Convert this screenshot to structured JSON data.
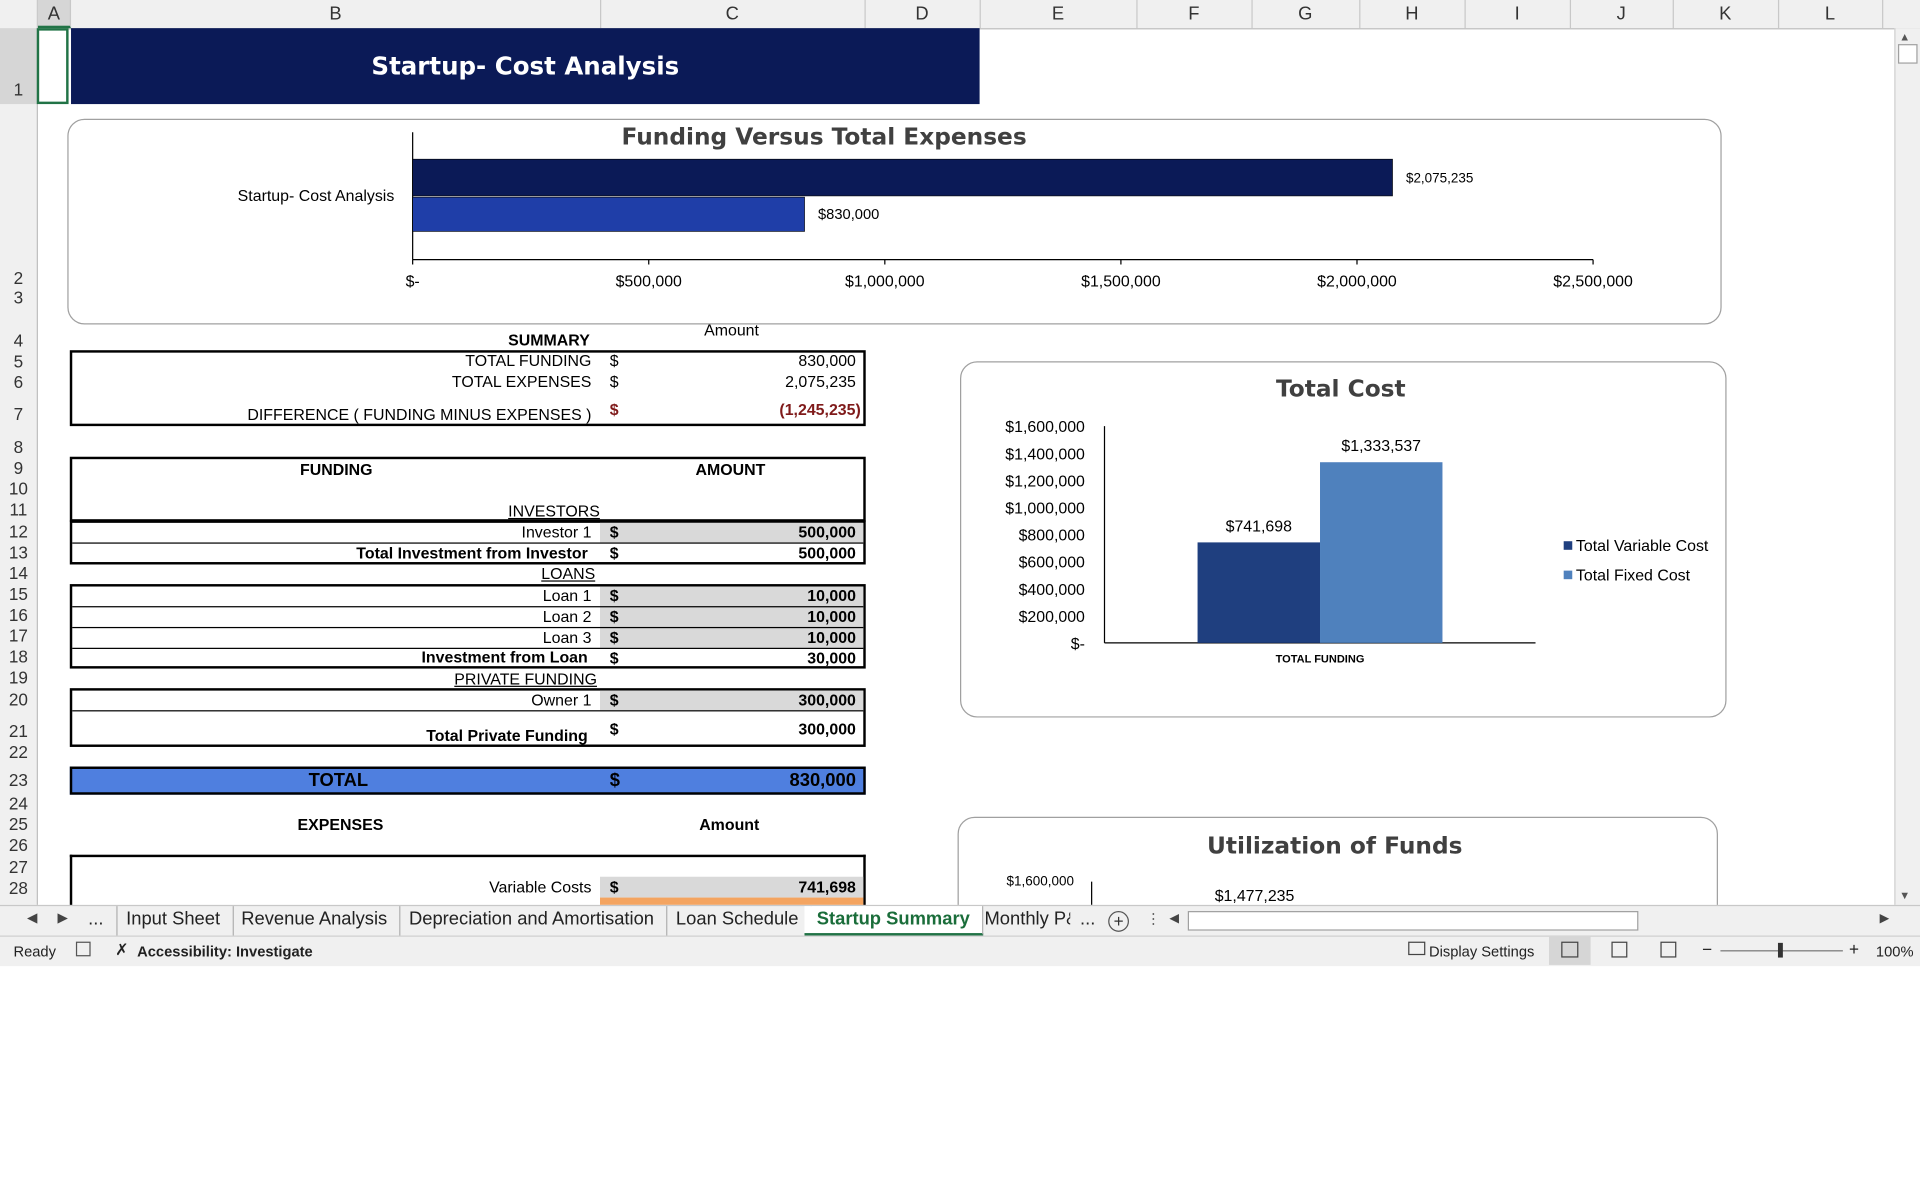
{
  "columns": [
    "A",
    "B",
    "C",
    "D",
    "E",
    "F",
    "G",
    "H",
    "I",
    "J",
    "K",
    "L"
  ],
  "rows": [
    "1",
    "2",
    "3",
    "4",
    "5",
    "6",
    "7",
    "8",
    "9",
    "10",
    "11",
    "12",
    "13",
    "14",
    "15",
    "16",
    "17",
    "18",
    "19",
    "20",
    "21",
    "22",
    "23",
    "24",
    "25",
    "26",
    "27",
    "28"
  ],
  "banner_title": "Startup- Cost Analysis",
  "chart1": {
    "title": "Funding Versus Total Expenses",
    "category": "Startup- Cost Analysis",
    "x_ticks": [
      "$-",
      "$500,000",
      "$1,000,000",
      "$1,500,000",
      "$2,000,000",
      "$2,500,000"
    ],
    "xlabel": "Amount"
  },
  "chart2": {
    "title": "Total Cost",
    "y_ticks": [
      "$1,600,000",
      "$1,400,000",
      "$1,200,000",
      "$1,000,000",
      "$800,000",
      "$600,000",
      "$400,000",
      "$200,000",
      "$-"
    ],
    "category": "TOTAL FUNDING",
    "legend": [
      "Total Variable Cost",
      "Total Fixed Cost"
    ]
  },
  "chart3": {
    "title": "Utilization of Funds",
    "y_top": "$1,600,000",
    "data_label": "$1,477,235"
  },
  "chart_data": [
    {
      "type": "bar",
      "orientation": "horizontal",
      "title": "Funding Versus Total Expenses",
      "categories": [
        "Startup- Cost Analysis"
      ],
      "series": [
        {
          "values": [
            2075235
          ],
          "label": "$2,075,235",
          "color": "#0b1a57"
        },
        {
          "values": [
            830000
          ],
          "label": "$830,000",
          "color": "#1f3ea8"
        }
      ],
      "xlim": [
        0,
        2500000
      ],
      "grid": false
    },
    {
      "type": "bar",
      "title": "Total Cost",
      "categories": [
        "TOTAL FUNDING"
      ],
      "series": [
        {
          "name": "Total Variable Cost",
          "values": [
            741698
          ],
          "label": "$741,698",
          "color": "#1f3f7f"
        },
        {
          "name": "Total Fixed Cost",
          "values": [
            1333537
          ],
          "label": "$1,333,537",
          "color": "#4f81bd"
        }
      ],
      "ylim": [
        0,
        1600000
      ],
      "legend": "right",
      "grid": false
    }
  ],
  "summary": {
    "header": "SUMMARY",
    "amount_header": "Amount",
    "rows": [
      {
        "label": "TOTAL FUNDING",
        "cur": "$",
        "value": "830,000"
      },
      {
        "label": "TOTAL EXPENSES",
        "cur": "$",
        "value": "2,075,235"
      },
      {
        "label": "DIFFERENCE  ( FUNDING MINUS EXPENSES )",
        "cur": "$",
        "value": "(1,245,235)"
      }
    ]
  },
  "funding": {
    "header": "FUNDING",
    "amount_header": "AMOUNT",
    "investors_label": "INVESTORS",
    "investor1": {
      "label": "Investor 1",
      "cur": "$",
      "value": "500,000"
    },
    "investor_total": {
      "label": "Total Investment from Investor",
      "cur": "$",
      "value": "500,000"
    },
    "loans_label": "LOANS",
    "loans": [
      {
        "label": "Loan 1",
        "cur": "$",
        "value": "10,000"
      },
      {
        "label": "Loan 2",
        "cur": "$",
        "value": "10,000"
      },
      {
        "label": "Loan 3",
        "cur": "$",
        "value": "10,000"
      }
    ],
    "loan_total": {
      "label": "Investment from Loan",
      "cur": "$",
      "value": "30,000"
    },
    "private_label": "PRIVATE FUNDING",
    "owner1": {
      "label": "Owner 1",
      "cur": "$",
      "value": "300,000"
    },
    "private_total": {
      "label": "Total Private Funding",
      "cur": "$",
      "value": "300,000"
    }
  },
  "total": {
    "label": "TOTAL",
    "cur": "$",
    "value": "830,000"
  },
  "expenses": {
    "header": "EXPENSES",
    "amount_header": "Amount",
    "variable": {
      "label": "Variable Costs",
      "cur": "$",
      "value": "741,698"
    }
  },
  "tabs": {
    "more_left": "...",
    "items": [
      "Input Sheet",
      "Revenue Analysis",
      "Depreciation and Amortisation",
      "Loan Schedule",
      "Startup Summary",
      "Monthly P&"
    ],
    "more_right": "...",
    "active": "Startup Summary"
  },
  "status": {
    "ready": "Ready",
    "accessibility": "Accessibility: Investigate",
    "display": "Display Settings",
    "zoom": "100%"
  }
}
